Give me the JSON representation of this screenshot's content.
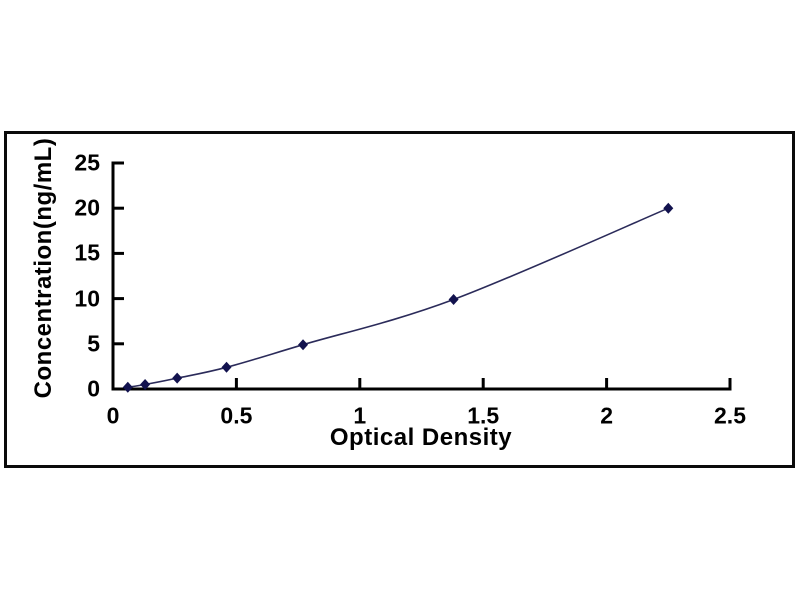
{
  "chart_data": {
    "type": "line",
    "title": "",
    "xlabel": "Optical Density",
    "ylabel": "Concentration(ng/mL)",
    "x": [
      0.06,
      0.13,
      0.26,
      0.46,
      0.77,
      1.38,
      2.25
    ],
    "y": [
      0.2,
      0.5,
      1.2,
      2.4,
      4.9,
      9.9,
      20.0
    ],
    "xlim": [
      0,
      2.5
    ],
    "ylim": [
      0,
      25
    ],
    "x_ticks": [
      {
        "label": "0",
        "value": 0
      },
      {
        "label": "0.5",
        "value": 0.5
      },
      {
        "label": "1",
        "value": 1
      },
      {
        "label": "1.5",
        "value": 1.5
      },
      {
        "label": "2",
        "value": 2
      },
      {
        "label": "2.5",
        "value": 2.5
      }
    ],
    "y_ticks": [
      {
        "label": "0",
        "value": 0
      },
      {
        "label": "5",
        "value": 5
      },
      {
        "label": "10",
        "value": 10
      },
      {
        "label": "15",
        "value": 15
      },
      {
        "label": "20",
        "value": 20
      },
      {
        "label": "25",
        "value": 25
      }
    ],
    "grid": false,
    "legend": "none",
    "marker": "diamond",
    "colors": {
      "line": "#2b2b5a",
      "marker": "#12124e",
      "axis": "#000000",
      "frame": "#0a0a0a",
      "background": "#ffffff",
      "text": "#000000"
    }
  }
}
